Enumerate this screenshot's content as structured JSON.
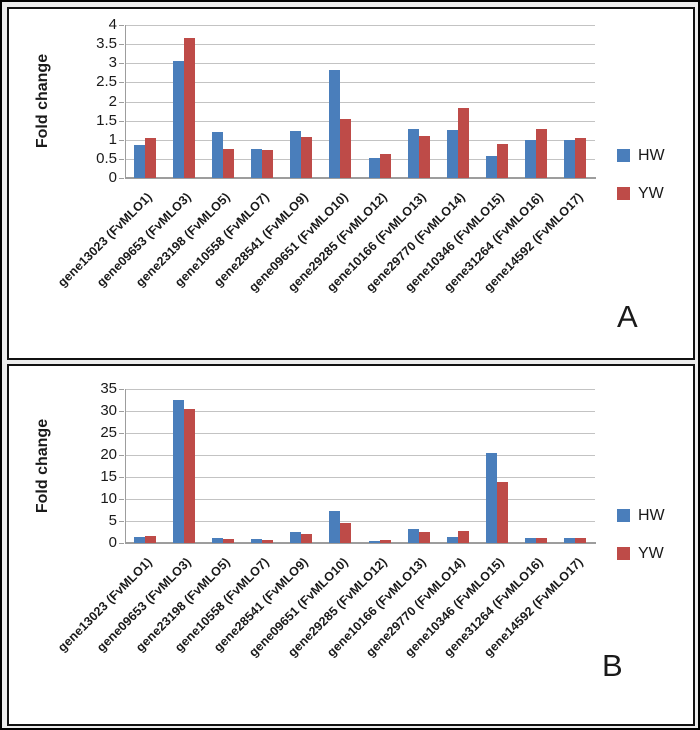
{
  "figure": {
    "description": "Two-panel bar chart figure of qPCR fold change for FvMLO genes"
  },
  "colors": {
    "hw_blue": "#4a7ebb",
    "yw_red": "#be4b48",
    "gridline": "#c3c3c3",
    "axis": "#9d9d9d",
    "text": "#1a1a1a"
  },
  "chart_data": [
    {
      "type": "bar",
      "panel_label": "A",
      "title": "",
      "xlabel": "",
      "ylabel": "Fold change",
      "ylim": [
        0,
        4
      ],
      "ytick_step": 0.5,
      "y_ticks": [
        "4",
        "3.5",
        "3",
        "2.5",
        "2",
        "1.5",
        "1",
        "0.5",
        "0"
      ],
      "grid": true,
      "legend_position": "right",
      "categories": [
        "gene13023 (FvMLO1)",
        "gene09653 (FvMLO3)",
        "gene23198 (FvMLO5)",
        "gene10558 (FvMLO7)",
        "gene28541 (FvMLO9)",
        "gene09651 (FvMLO10)",
        "gene29285 (FvMLO12)",
        "gene10166 (FvMLO13)",
        "gene29770 (FvMLO14)",
        "gene10346 (FvMLO15)",
        "gene31264 (FvMLO16)",
        "gene14592 (FvMLO17)"
      ],
      "series": [
        {
          "name": "HW",
          "color": "#4a7ebb",
          "values": [
            0.85,
            3.05,
            1.2,
            0.75,
            1.22,
            2.82,
            0.52,
            1.27,
            1.25,
            0.58,
            1.0,
            1.0
          ]
        },
        {
          "name": "YW",
          "color": "#be4b48",
          "values": [
            1.05,
            3.65,
            0.75,
            0.72,
            1.08,
            1.55,
            0.62,
            1.1,
            1.82,
            0.9,
            1.28,
            1.05
          ]
        }
      ]
    },
    {
      "type": "bar",
      "panel_label": "B",
      "title": "",
      "xlabel": "",
      "ylabel": "Fold change",
      "ylim": [
        0,
        35
      ],
      "ytick_step": 5,
      "y_ticks": [
        "35",
        "30",
        "25",
        "20",
        "15",
        "10",
        "5",
        "0"
      ],
      "grid": true,
      "legend_position": "right",
      "categories": [
        "gene13023 (FvMLO1)",
        "gene09653 (FvMLO3)",
        "gene23198 (FvMLO5)",
        "gene10558 (FvMLO7)",
        "gene28541 (FvMLO9)",
        "gene09651 (FvMLO10)",
        "gene29285 (FvMLO12)",
        "gene10166 (FvMLO13)",
        "gene29770 (FvMLO14)",
        "gene10346 (FvMLO15)",
        "gene31264 (FvMLO16)",
        "gene14592 (FvMLO17)"
      ],
      "series": [
        {
          "name": "HW",
          "color": "#4a7ebb",
          "values": [
            1.4,
            32.5,
            1.1,
            0.9,
            2.6,
            7.3,
            0.5,
            3.2,
            1.3,
            20.5,
            1.1,
            1.1
          ]
        },
        {
          "name": "YW",
          "color": "#be4b48",
          "values": [
            1.6,
            30.5,
            0.8,
            0.6,
            2.1,
            4.6,
            0.6,
            2.6,
            2.8,
            13.8,
            1.1,
            1.2
          ]
        }
      ]
    }
  ]
}
